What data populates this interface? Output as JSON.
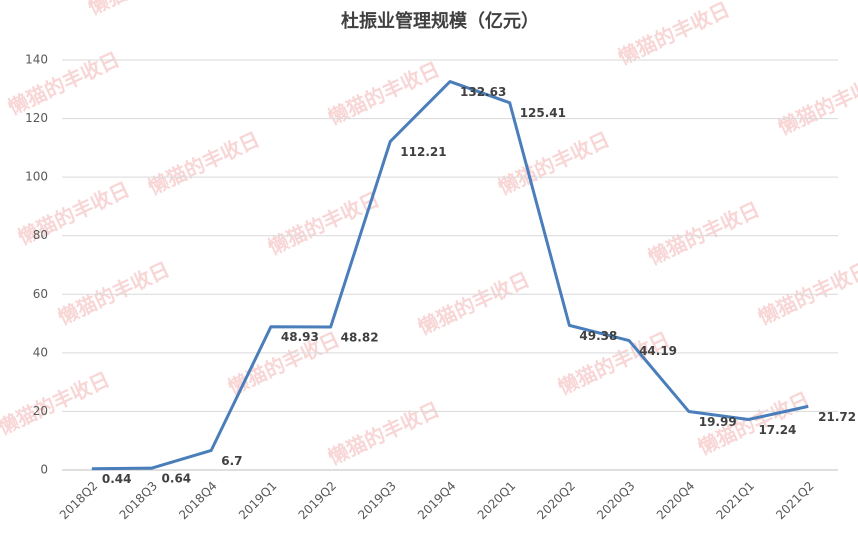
{
  "chart_data": {
    "type": "line",
    "title": "杜振业管理规模（亿元）",
    "categories": [
      "2018Q2",
      "2018Q3",
      "2018Q4",
      "2019Q1",
      "2019Q2",
      "2019Q3",
      "2019Q4",
      "2020Q1",
      "2020Q2",
      "2020Q3",
      "2020Q4",
      "2021Q1",
      "2021Q2"
    ],
    "series": [
      {
        "name": "管理规模",
        "color": "#4a7ebb",
        "values": [
          0.44,
          0.64,
          6.7,
          48.93,
          48.82,
          112.21,
          132.63,
          125.41,
          49.38,
          44.19,
          19.99,
          17.24,
          21.72
        ]
      }
    ],
    "ylim": [
      0,
      140
    ],
    "yticks": [
      0,
      20,
      40,
      60,
      80,
      100,
      120,
      140
    ],
    "grid": true,
    "watermark": "懒猫的丰收日"
  }
}
